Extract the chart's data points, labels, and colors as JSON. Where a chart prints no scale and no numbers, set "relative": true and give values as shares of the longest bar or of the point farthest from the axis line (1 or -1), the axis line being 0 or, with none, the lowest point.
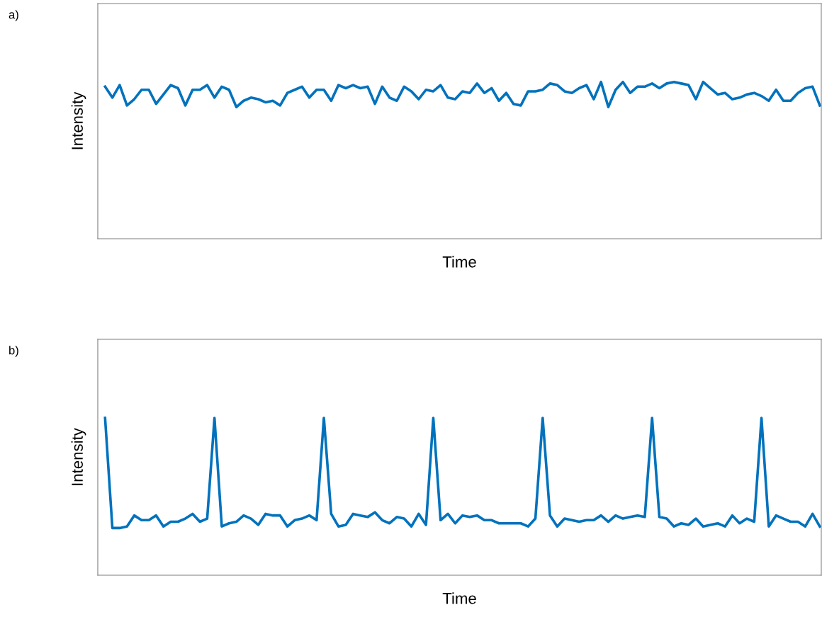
{
  "chart_data": [
    {
      "type": "line",
      "xlabel": "Time",
      "ylabel": "Intensity",
      "annotations": [
        "a)"
      ],
      "relative": true,
      "color": "#0072bd",
      "categories": [
        null,
        null,
        null,
        null,
        null,
        null,
        null,
        null,
        null,
        null,
        null,
        null,
        null,
        null,
        null,
        null,
        null,
        null,
        null,
        null,
        null,
        null,
        null,
        null,
        null,
        null,
        null,
        null,
        null,
        null,
        null,
        null,
        null,
        null,
        null,
        null,
        null,
        null,
        null,
        null,
        null,
        null,
        null,
        null,
        null,
        null,
        null,
        null,
        null,
        null,
        null,
        null,
        null,
        null,
        null,
        null,
        null,
        null,
        null,
        null,
        null,
        null,
        null,
        null,
        null,
        null,
        null,
        null,
        null,
        null,
        null,
        null,
        null,
        null,
        null,
        null,
        null,
        null,
        null,
        null,
        null,
        null,
        null,
        null,
        null,
        null,
        null,
        null,
        null,
        null,
        null,
        null,
        null,
        null,
        null,
        null,
        null,
        null,
        null
      ],
      "values": [
        0.97,
        0.9,
        0.98,
        0.85,
        0.89,
        0.95,
        0.95,
        0.86,
        0.92,
        0.98,
        0.96,
        0.85,
        0.95,
        0.95,
        0.98,
        0.9,
        0.97,
        0.95,
        0.84,
        0.88,
        0.9,
        0.89,
        0.87,
        0.88,
        0.85,
        0.93,
        0.95,
        0.97,
        0.9,
        0.95,
        0.95,
        0.88,
        0.98,
        0.96,
        0.98,
        0.96,
        0.97,
        0.86,
        0.97,
        0.9,
        0.88,
        0.97,
        0.94,
        0.89,
        0.95,
        0.94,
        0.98,
        0.9,
        0.89,
        0.94,
        0.93,
        0.99,
        0.93,
        0.96,
        0.88,
        0.93,
        0.86,
        0.85,
        0.94,
        0.94,
        0.95,
        0.99,
        0.98,
        0.94,
        0.93,
        0.96,
        0.98,
        0.89,
        1.0,
        0.84,
        0.95,
        1.0,
        0.93,
        0.97,
        0.97,
        0.99,
        0.96,
        0.99,
        1.0,
        0.99,
        0.98,
        0.89,
        1.0,
        0.96,
        0.92,
        0.93,
        0.89,
        0.9,
        0.92,
        0.93,
        0.91,
        0.88,
        0.95,
        0.88,
        0.88,
        0.93,
        0.96,
        0.97,
        0.85
      ]
    },
    {
      "type": "line",
      "xlabel": "Time",
      "ylabel": "Intensity",
      "annotations": [
        "b)"
      ],
      "relative": true,
      "color": "#0072bd",
      "categories": [
        null,
        null,
        null,
        null,
        null,
        null,
        null,
        null,
        null,
        null,
        null,
        null,
        null,
        null,
        null,
        null,
        null,
        null,
        null,
        null,
        null,
        null,
        null,
        null,
        null,
        null,
        null,
        null,
        null,
        null,
        null,
        null,
        null,
        null,
        null,
        null,
        null,
        null,
        null,
        null,
        null,
        null,
        null,
        null,
        null,
        null,
        null,
        null,
        null,
        null,
        null,
        null,
        null,
        null,
        null,
        null,
        null,
        null,
        null,
        null,
        null,
        null,
        null,
        null,
        null,
        null,
        null,
        null,
        null,
        null,
        null,
        null,
        null,
        null,
        null,
        null,
        null,
        null,
        null,
        null,
        null,
        null,
        null,
        null,
        null,
        null,
        null,
        null,
        null,
        null,
        null,
        null,
        null,
        null,
        null,
        null,
        null,
        null,
        null
      ],
      "values": [
        1.0,
        0.3,
        0.3,
        0.31,
        0.38,
        0.35,
        0.35,
        0.38,
        0.31,
        0.34,
        0.34,
        0.36,
        0.39,
        0.34,
        0.36,
        1.0,
        0.31,
        0.33,
        0.34,
        0.38,
        0.36,
        0.32,
        0.39,
        0.38,
        0.38,
        0.31,
        0.35,
        0.36,
        0.38,
        0.35,
        1.0,
        0.39,
        0.31,
        0.32,
        0.39,
        0.38,
        0.37,
        0.4,
        0.35,
        0.33,
        0.37,
        0.36,
        0.31,
        0.39,
        0.32,
        1.0,
        0.35,
        0.39,
        0.33,
        0.38,
        0.37,
        0.38,
        0.35,
        0.35,
        0.33,
        0.33,
        0.33,
        0.33,
        0.31,
        0.36,
        1.0,
        0.38,
        0.31,
        0.36,
        0.35,
        0.34,
        0.35,
        0.35,
        0.38,
        0.34,
        0.38,
        0.36,
        0.37,
        0.38,
        0.37,
        1.0,
        0.37,
        0.36,
        0.31,
        0.33,
        0.32,
        0.36,
        0.31,
        0.32,
        0.33,
        0.31,
        0.38,
        0.33,
        0.36,
        0.34,
        1.0,
        0.31,
        0.38,
        0.36,
        0.34,
        0.34,
        0.31,
        0.39,
        0.31
      ]
    }
  ]
}
